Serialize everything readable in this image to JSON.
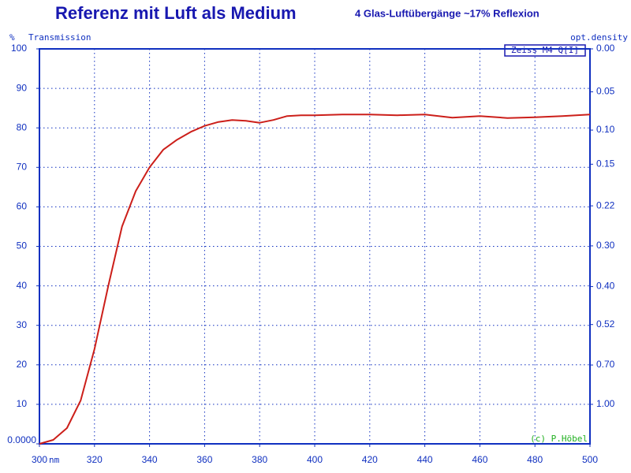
{
  "chart_data": {
    "type": "line",
    "title": "Referenz mit Luft als Medium",
    "subtitle": "4 Glas-Luftübergänge  ~17% Reflexion",
    "y_unit": "%",
    "y_label": "Transmission",
    "y2_label": "opt.density",
    "x_unit": "nm",
    "annotations": [
      "Zeiss M4 Q[I]",
      "(c) P.Höbel"
    ],
    "x": [
      300,
      305,
      310,
      315,
      320,
      325,
      330,
      335,
      340,
      345,
      350,
      355,
      360,
      365,
      370,
      375,
      380,
      385,
      390,
      395,
      400,
      410,
      420,
      430,
      440,
      450,
      460,
      470,
      480,
      490,
      500
    ],
    "values": [
      0,
      1,
      4,
      11,
      24,
      40,
      55,
      64,
      70,
      74.5,
      77,
      79,
      80.5,
      81.5,
      82,
      81.8,
      81.3,
      82,
      83,
      83.2,
      83.2,
      83.4,
      83.4,
      83.2,
      83.4,
      82.6,
      83,
      82.5,
      82.7,
      83,
      83.4
    ],
    "color": "#cc1f1a",
    "xlim": [
      300,
      500
    ],
    "xticks": [
      300,
      320,
      340,
      360,
      380,
      400,
      420,
      440,
      460,
      480,
      500
    ],
    "ylim": [
      0,
      100
    ],
    "yticks": [
      {
        "value": 0,
        "label": "0.0000"
      },
      10,
      20,
      30,
      40,
      50,
      60,
      70,
      80,
      90,
      100
    ],
    "y2scale": "optical-density",
    "y2ticks": [
      {
        "value": 0,
        "label": "0.00"
      },
      0.05,
      {
        "value": 0.1,
        "label": "0.10"
      },
      0.15,
      0.22,
      {
        "value": 0.3,
        "label": "0.30"
      },
      {
        "value": 0.4,
        "label": "0.40"
      },
      0.52,
      {
        "value": 0.7,
        "label": "0.70"
      },
      {
        "value": 1,
        "label": "1.00"
      }
    ],
    "grid": true
  }
}
